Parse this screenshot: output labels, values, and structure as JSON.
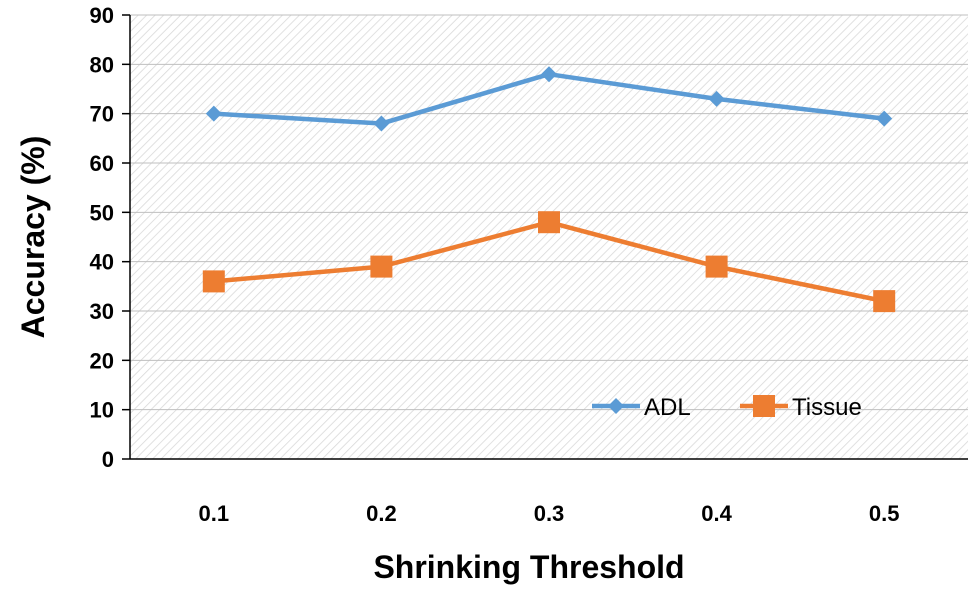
{
  "chart_data": {
    "type": "line",
    "categories": [
      "0.1",
      "0.2",
      "0.3",
      "0.4",
      "0.5"
    ],
    "series": [
      {
        "name": "ADL",
        "values": [
          70,
          68,
          78,
          73,
          69
        ],
        "color": "#5B9BD5",
        "marker": "diamond"
      },
      {
        "name": "Tissue",
        "values": [
          36,
          39,
          48,
          39,
          32
        ],
        "color": "#ED7D31",
        "marker": "square"
      }
    ],
    "xlabel": "Shrinking Threshold",
    "ylabel": "Accuracy (%)",
    "ylim": [
      0,
      90
    ],
    "yticks": [
      "0",
      "10",
      "20",
      "30",
      "40",
      "50",
      "60",
      "70",
      "80",
      "90"
    ],
    "grid": true,
    "legend_position": "bottom-right"
  }
}
